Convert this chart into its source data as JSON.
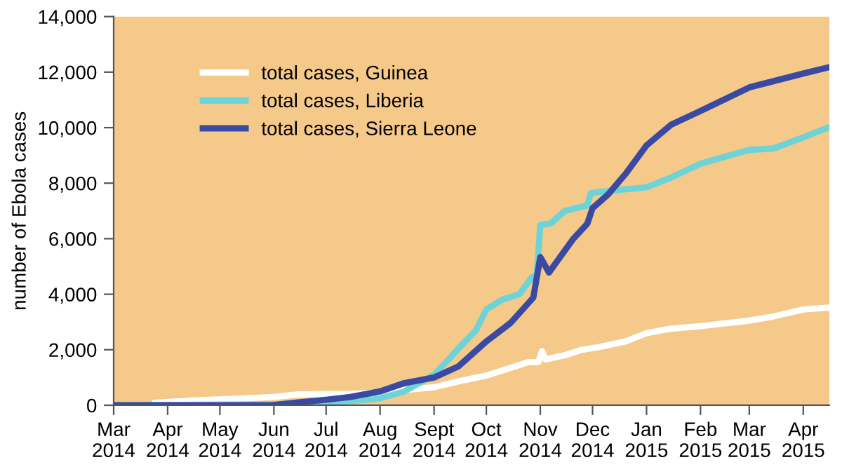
{
  "chart_data": {
    "type": "line",
    "ylabel": "number of Ebola cases",
    "xlim": [
      "2014-03-01",
      "2015-04-16"
    ],
    "ylim": [
      0,
      14000
    ],
    "yticks": [
      {
        "value": 0,
        "label": "0"
      },
      {
        "value": 2000,
        "label": "2,000"
      },
      {
        "value": 4000,
        "label": "4,000"
      },
      {
        "value": 6000,
        "label": "6,000"
      },
      {
        "value": 8000,
        "label": "8,000"
      },
      {
        "value": 10000,
        "label": "10,000"
      },
      {
        "value": 12000,
        "label": "12,000"
      },
      {
        "value": 14000,
        "label": "14,000"
      }
    ],
    "xticks": [
      {
        "value": "2014-03-01",
        "label": "Mar\n2014"
      },
      {
        "value": "2014-04-01",
        "label": "Apr\n2014"
      },
      {
        "value": "2014-05-01",
        "label": "May\n2014"
      },
      {
        "value": "2014-06-01",
        "label": "Jun\n2014"
      },
      {
        "value": "2014-07-01",
        "label": "Jul\n2014"
      },
      {
        "value": "2014-08-01",
        "label": "Aug\n2014"
      },
      {
        "value": "2014-09-01",
        "label": "Sept\n2014"
      },
      {
        "value": "2014-10-01",
        "label": "Oct\n2014"
      },
      {
        "value": "2014-11-01",
        "label": "Nov\n2014"
      },
      {
        "value": "2014-12-01",
        "label": "Dec\n2014"
      },
      {
        "value": "2015-01-01",
        "label": "Jan\n2015"
      },
      {
        "value": "2015-02-01",
        "label": "Feb\n2015"
      },
      {
        "value": "2015-03-01",
        "label": "Mar\n2015"
      },
      {
        "value": "2015-04-01",
        "label": "Apr\n2015"
      }
    ],
    "grid": false,
    "legend": "top left",
    "marker": "none",
    "line_style": "solid",
    "series": [
      {
        "name": "total cases, Guinea",
        "color": "#ffffff",
        "x": [
          "2014-03-25",
          "2014-04-15",
          "2014-05-15",
          "2014-06-01",
          "2014-06-15",
          "2014-07-15",
          "2014-08-01",
          "2014-08-15",
          "2014-09-01",
          "2014-09-15",
          "2014-10-01",
          "2014-10-15",
          "2014-10-25",
          "2014-10-31",
          "2014-11-02",
          "2014-11-04",
          "2014-11-15",
          "2014-11-25",
          "2014-12-05",
          "2014-12-20",
          "2015-01-01",
          "2015-01-15",
          "2015-02-01",
          "2015-02-15",
          "2015-03-01",
          "2015-03-15",
          "2015-04-01",
          "2015-04-16"
        ],
        "values": [
          90,
          170,
          250,
          300,
          390,
          410,
          460,
          550,
          650,
          860,
          1070,
          1350,
          1550,
          1560,
          1950,
          1650,
          1800,
          2000,
          2100,
          2300,
          2600,
          2760,
          2850,
          2950,
          3050,
          3200,
          3450,
          3520
        ]
      },
      {
        "name": "total cases, Liberia",
        "color": "#6dd3d6",
        "x": [
          "2014-03-01",
          "2014-06-01",
          "2014-07-15",
          "2014-08-01",
          "2014-08-15",
          "2014-09-01",
          "2014-09-10",
          "2014-09-15",
          "2014-09-25",
          "2014-10-01",
          "2014-10-10",
          "2014-10-20",
          "2014-10-27",
          "2014-10-30",
          "2014-11-01",
          "2014-11-07",
          "2014-11-15",
          "2014-11-28",
          "2014-11-30",
          "2014-12-15",
          "2015-01-01",
          "2015-01-15",
          "2015-02-01",
          "2015-03-01",
          "2015-03-15",
          "2015-04-01",
          "2015-04-16"
        ],
        "values": [
          0,
          30,
          150,
          250,
          500,
          1100,
          1700,
          2050,
          2700,
          3450,
          3800,
          4000,
          4600,
          4700,
          6500,
          6550,
          7000,
          7200,
          7650,
          7750,
          7850,
          8200,
          8700,
          9200,
          9250,
          9650,
          10020
        ]
      },
      {
        "name": "total cases, Sierra Leone",
        "color": "#3a4aa3",
        "x": [
          "2014-03-01",
          "2014-05-31",
          "2014-06-15",
          "2014-07-01",
          "2014-07-15",
          "2014-08-01",
          "2014-08-15",
          "2014-09-01",
          "2014-09-15",
          "2014-10-01",
          "2014-10-15",
          "2014-10-28",
          "2014-11-01",
          "2014-11-06",
          "2014-11-20",
          "2014-11-28",
          "2014-12-01",
          "2014-12-10",
          "2014-12-20",
          "2015-01-01",
          "2015-01-15",
          "2015-02-01",
          "2015-03-01",
          "2015-04-01",
          "2015-04-16"
        ],
        "values": [
          0,
          0,
          100,
          200,
          300,
          500,
          800,
          1000,
          1400,
          2300,
          2970,
          3880,
          5340,
          4780,
          6000,
          6540,
          7100,
          7600,
          8340,
          9360,
          10100,
          10600,
          11450,
          11950,
          12180
        ]
      }
    ]
  }
}
